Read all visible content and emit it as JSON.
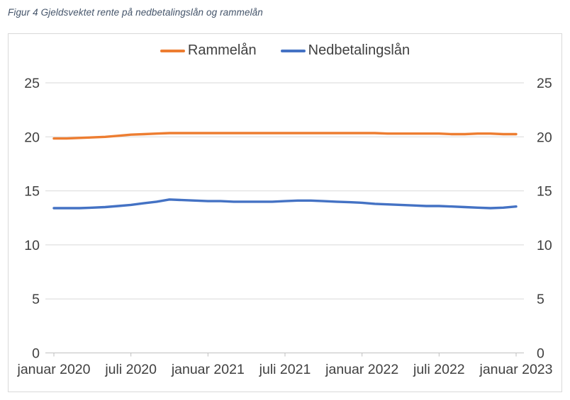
{
  "page": {
    "caption": "Figur 4 Gjeldsvektet rente på nedbetalingslån og rammelån"
  },
  "chart_data": {
    "type": "line",
    "title": "Figur 4 Gjeldsvektet rente på nedbetalingslån og rammelån",
    "frequency": "monthly",
    "x_start": "januar 2020",
    "x_end": "januar 2023",
    "x_tick_labels": [
      "januar 2020",
      "juli 2020",
      "januar 2021",
      "juli 2021",
      "januar 2022",
      "juli 2022",
      "januar 2023"
    ],
    "y_ticks": [
      0,
      5,
      10,
      15,
      20,
      25
    ],
    "ylim": [
      0,
      25
    ],
    "grid": true,
    "y_axis_sides": "both",
    "legend_position": "top-center",
    "series": [
      {
        "name": "Rammelån",
        "color": "#ED7D31",
        "values": [
          19.85,
          19.85,
          19.9,
          19.95,
          20.0,
          20.1,
          20.2,
          20.25,
          20.3,
          20.35,
          20.35,
          20.35,
          20.35,
          20.35,
          20.35,
          20.35,
          20.35,
          20.35,
          20.35,
          20.35,
          20.35,
          20.35,
          20.35,
          20.35,
          20.35,
          20.35,
          20.3,
          20.3,
          20.3,
          20.3,
          20.3,
          20.25,
          20.25,
          20.3,
          20.3,
          20.25,
          20.25
        ]
      },
      {
        "name": "Nedbetalingslån",
        "color": "#4472C4",
        "values": [
          13.4,
          13.4,
          13.4,
          13.45,
          13.5,
          13.6,
          13.7,
          13.85,
          14.0,
          14.2,
          14.15,
          14.1,
          14.05,
          14.05,
          14.0,
          14.0,
          14.0,
          14.0,
          14.05,
          14.1,
          14.1,
          14.05,
          14.0,
          13.95,
          13.9,
          13.8,
          13.75,
          13.7,
          13.65,
          13.6,
          13.6,
          13.55,
          13.5,
          13.45,
          13.4,
          13.45,
          13.55
        ]
      }
    ]
  },
  "style": {
    "axis_label_color": "#404040",
    "gridline_color": "#D9D9D9",
    "axis_line_color": "#BFBFBF",
    "border_color": "#D9D9D9"
  }
}
